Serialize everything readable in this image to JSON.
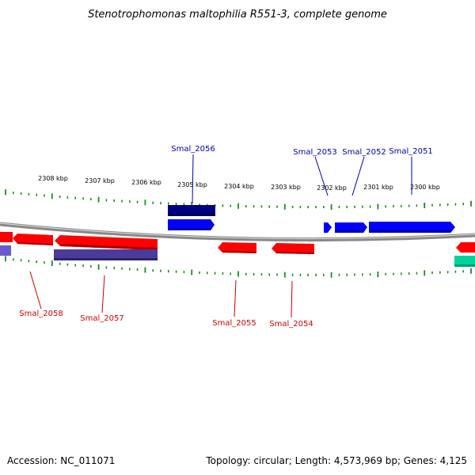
{
  "title": "Stenotrophomonas maltophilia R551-3, complete genome",
  "footer": {
    "accession": "Accession: NC_011071",
    "summary": "Topology: circular; Length: 4,573,969 bp; Genes: 4,125"
  },
  "colors": {
    "forward_gene": "#0000ff",
    "reverse_gene": "#ff0000",
    "navy_gene": "#000080",
    "purple_gene": "#4b3b9a",
    "teal_gene": "#00d49a",
    "tick": "#1a8c1a",
    "backbone": "#888888",
    "forward_label": "#0000aa",
    "reverse_label": "#cc0000"
  },
  "ticks": [
    {
      "label": "2308 kbp"
    },
    {
      "label": "2307 kbp"
    },
    {
      "label": "2306 kbp"
    },
    {
      "label": "2305 kbp"
    },
    {
      "label": "2304 kbp"
    },
    {
      "label": "2303 kbp"
    },
    {
      "label": "2302 kbp"
    },
    {
      "label": "2301 kbp"
    },
    {
      "label": "2300 kbp"
    }
  ],
  "gene_labels": [
    {
      "name": "Smal_2056",
      "strand": "forward"
    },
    {
      "name": "Smal_2053",
      "strand": "forward"
    },
    {
      "name": "Smal_2052",
      "strand": "forward"
    },
    {
      "name": "Smal_2051",
      "strand": "forward"
    },
    {
      "name": "Smal_2058",
      "strand": "reverse"
    },
    {
      "name": "Smal_2057",
      "strand": "reverse"
    },
    {
      "name": "Smal_2055",
      "strand": "reverse"
    },
    {
      "name": "Smal_2054",
      "strand": "reverse"
    }
  ]
}
